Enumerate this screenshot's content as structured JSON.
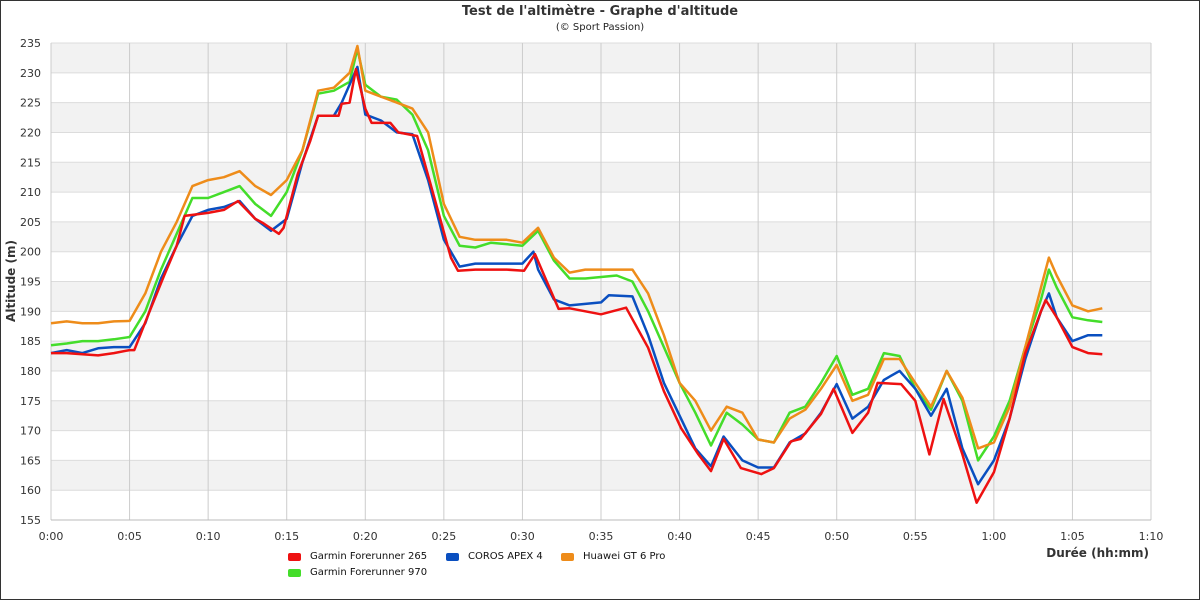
{
  "chart_data": {
    "type": "line",
    "title": "Test de l'altimètre - Graphe d'altitude",
    "subtitle": "(© Sport Passion)",
    "xlabel": "Durée (hh:mm)",
    "ylabel": "Altitude (m)",
    "xlim_minutes": [
      0,
      70
    ],
    "ylim": [
      155,
      235
    ],
    "yticks": [
      155,
      160,
      165,
      170,
      175,
      180,
      185,
      190,
      195,
      200,
      205,
      210,
      215,
      220,
      225,
      230,
      235
    ],
    "xticks": [
      "0:00",
      "0:05",
      "0:10",
      "0:15",
      "0:20",
      "0:25",
      "0:30",
      "0:35",
      "0:40",
      "0:45",
      "0:50",
      "0:55",
      "1:00",
      "1:05",
      "1:10"
    ],
    "grid": true,
    "legend_position": "bottom",
    "series": [
      {
        "name": "Garmin Forerunner 265",
        "color": "#ee1111",
        "points": [
          [
            0,
            183
          ],
          [
            1,
            183
          ],
          [
            2,
            182.8
          ],
          [
            3,
            182.6
          ],
          [
            4,
            183
          ],
          [
            5,
            183.5
          ],
          [
            5.3,
            183.5
          ],
          [
            6.2,
            189.5
          ],
          [
            7.2,
            196
          ],
          [
            8,
            201
          ],
          [
            8.5,
            206
          ],
          [
            10,
            206.5
          ],
          [
            11,
            207
          ],
          [
            11.9,
            208.5
          ],
          [
            13,
            205.5
          ],
          [
            13.5,
            204.8
          ],
          [
            14.5,
            203
          ],
          [
            14.8,
            204
          ],
          [
            15.7,
            213
          ],
          [
            16.5,
            218.6
          ],
          [
            17,
            222.8
          ],
          [
            18.3,
            222.8
          ],
          [
            18.5,
            224.8
          ],
          [
            19,
            225
          ],
          [
            19.4,
            230.6
          ],
          [
            20,
            224
          ],
          [
            20.4,
            221.6
          ],
          [
            21.6,
            221.6
          ],
          [
            22.1,
            220
          ],
          [
            23.3,
            219.4
          ],
          [
            24.4,
            209
          ],
          [
            25.45,
            199
          ],
          [
            25.9,
            196.8
          ],
          [
            27,
            197
          ],
          [
            29,
            197
          ],
          [
            30.1,
            196.8
          ],
          [
            30.8,
            199.6
          ],
          [
            32.3,
            190.4
          ],
          [
            33,
            190.5
          ],
          [
            35,
            189.5
          ],
          [
            36.6,
            190.6
          ],
          [
            38,
            183.9
          ],
          [
            39,
            176.6
          ],
          [
            40.1,
            170.4
          ],
          [
            41.2,
            166
          ],
          [
            42,
            163.2
          ],
          [
            42.8,
            168.6
          ],
          [
            43.9,
            163.7
          ],
          [
            45.2,
            162.7
          ],
          [
            46,
            163.7
          ],
          [
            47.1,
            168.2
          ],
          [
            47.7,
            168.6
          ],
          [
            49,
            172.8
          ],
          [
            49.8,
            177
          ],
          [
            51,
            169.6
          ],
          [
            52,
            173
          ],
          [
            52.6,
            178
          ],
          [
            54.1,
            177.8
          ],
          [
            55,
            175
          ],
          [
            55.9,
            166
          ],
          [
            56.8,
            175.3
          ],
          [
            58,
            166
          ],
          [
            58.9,
            157.9
          ],
          [
            60,
            163
          ],
          [
            61,
            172
          ],
          [
            62,
            183
          ],
          [
            63,
            190
          ],
          [
            63.3,
            191.9
          ],
          [
            64,
            189
          ],
          [
            65,
            184
          ],
          [
            66,
            183
          ],
          [
            66.9,
            182.8
          ]
        ]
      },
      {
        "name": "COROS APEX 4",
        "color": "#0a4fc0",
        "points": [
          [
            0,
            183
          ],
          [
            1,
            183.5
          ],
          [
            2,
            183
          ],
          [
            3,
            183.8
          ],
          [
            4,
            184
          ],
          [
            5,
            184
          ],
          [
            6,
            188
          ],
          [
            7,
            195.5
          ],
          [
            8,
            201
          ],
          [
            9,
            206
          ],
          [
            10,
            207
          ],
          [
            11,
            207.5
          ],
          [
            12,
            208.5
          ],
          [
            13,
            205.5
          ],
          [
            14,
            203.5
          ],
          [
            15,
            205.5
          ],
          [
            16,
            215
          ],
          [
            17,
            222.8
          ],
          [
            18,
            222.8
          ],
          [
            18.5,
            225
          ],
          [
            19.5,
            231
          ],
          [
            20,
            223
          ],
          [
            21,
            222
          ],
          [
            22,
            220
          ],
          [
            23,
            219.7
          ],
          [
            24,
            212
          ],
          [
            25,
            202
          ],
          [
            26,
            197.5
          ],
          [
            27,
            198
          ],
          [
            30,
            198
          ],
          [
            30.7,
            200
          ],
          [
            31,
            197
          ],
          [
            32,
            192
          ],
          [
            33,
            191
          ],
          [
            35,
            191.5
          ],
          [
            35.5,
            192.7
          ],
          [
            37,
            192.5
          ],
          [
            38,
            186
          ],
          [
            39,
            178
          ],
          [
            40,
            172.5
          ],
          [
            41,
            167
          ],
          [
            42,
            164
          ],
          [
            42.8,
            169
          ],
          [
            44,
            165
          ],
          [
            45,
            163.8
          ],
          [
            46,
            163.8
          ],
          [
            47,
            168
          ],
          [
            48,
            169.5
          ],
          [
            49,
            173
          ],
          [
            50,
            177.8
          ],
          [
            51,
            172
          ],
          [
            52,
            174
          ],
          [
            53,
            178.5
          ],
          [
            54,
            180
          ],
          [
            55,
            177
          ],
          [
            56,
            172.5
          ],
          [
            57,
            177
          ],
          [
            58,
            167
          ],
          [
            59,
            161
          ],
          [
            60,
            165
          ],
          [
            61,
            172
          ],
          [
            62,
            182
          ],
          [
            63,
            190
          ],
          [
            63.5,
            193
          ],
          [
            64,
            189
          ],
          [
            65,
            185
          ],
          [
            66,
            186
          ],
          [
            66.9,
            186
          ]
        ]
      },
      {
        "name": "Huawei GT 6 Pro",
        "color": "#ee8c1a",
        "points": [
          [
            0,
            188
          ],
          [
            1,
            188.3
          ],
          [
            2,
            188
          ],
          [
            3,
            188
          ],
          [
            4,
            188.3
          ],
          [
            5,
            188.4
          ],
          [
            6,
            193
          ],
          [
            7,
            200
          ],
          [
            8,
            205
          ],
          [
            9,
            211
          ],
          [
            10,
            212
          ],
          [
            11,
            212.5
          ],
          [
            12,
            213.5
          ],
          [
            13,
            211
          ],
          [
            14,
            209.5
          ],
          [
            15,
            212
          ],
          [
            16,
            217
          ],
          [
            17,
            227
          ],
          [
            18,
            227.5
          ],
          [
            19,
            230
          ],
          [
            19.5,
            234.5
          ],
          [
            20,
            227
          ],
          [
            21,
            226
          ],
          [
            22,
            225
          ],
          [
            23,
            224
          ],
          [
            24,
            220
          ],
          [
            25,
            208
          ],
          [
            26,
            202.5
          ],
          [
            27,
            202
          ],
          [
            29,
            202
          ],
          [
            30,
            201.5
          ],
          [
            31,
            204
          ],
          [
            32,
            199
          ],
          [
            33,
            196.5
          ],
          [
            34,
            197
          ],
          [
            37,
            197
          ],
          [
            38,
            193
          ],
          [
            39,
            186
          ],
          [
            40,
            178
          ],
          [
            41,
            175
          ],
          [
            42,
            170
          ],
          [
            43,
            174
          ],
          [
            44,
            173
          ],
          [
            45,
            168.5
          ],
          [
            46,
            168
          ],
          [
            47,
            172
          ],
          [
            48,
            173.5
          ],
          [
            49,
            177
          ],
          [
            50,
            181
          ],
          [
            51,
            175
          ],
          [
            52,
            176
          ],
          [
            53,
            182
          ],
          [
            54,
            182
          ],
          [
            55,
            178
          ],
          [
            56,
            174
          ],
          [
            57,
            180
          ],
          [
            58,
            175.5
          ],
          [
            59,
            167
          ],
          [
            60,
            168
          ],
          [
            61,
            174
          ],
          [
            62,
            184
          ],
          [
            63,
            194
          ],
          [
            63.5,
            199
          ],
          [
            64,
            196
          ],
          [
            65,
            191
          ],
          [
            66,
            190
          ],
          [
            66.9,
            190.5
          ]
        ]
      },
      {
        "name": "Garmin Forerunner 970",
        "color": "#44dd2a",
        "points": [
          [
            0,
            184.3
          ],
          [
            1,
            184.6
          ],
          [
            2,
            185
          ],
          [
            3,
            185
          ],
          [
            4,
            185.3
          ],
          [
            5,
            185.7
          ],
          [
            6,
            190
          ],
          [
            7,
            197
          ],
          [
            8,
            203
          ],
          [
            9,
            209
          ],
          [
            10,
            209
          ],
          [
            11,
            210
          ],
          [
            12,
            211
          ],
          [
            13,
            208
          ],
          [
            14,
            206
          ],
          [
            15,
            210
          ],
          [
            16,
            217
          ],
          [
            17,
            226.5
          ],
          [
            18,
            227
          ],
          [
            19,
            228.5
          ],
          [
            19.5,
            234
          ],
          [
            20,
            228
          ],
          [
            21,
            226
          ],
          [
            22,
            225.5
          ],
          [
            23,
            223
          ],
          [
            24,
            217
          ],
          [
            25,
            206
          ],
          [
            26,
            201
          ],
          [
            27,
            200.7
          ],
          [
            28,
            201.5
          ],
          [
            30,
            201
          ],
          [
            31,
            203.5
          ],
          [
            32,
            198.5
          ],
          [
            33,
            195.5
          ],
          [
            34,
            195.5
          ],
          [
            36,
            196
          ],
          [
            37,
            195
          ],
          [
            38,
            190
          ],
          [
            39,
            184
          ],
          [
            40,
            178
          ],
          [
            41,
            173
          ],
          [
            42,
            167.5
          ],
          [
            43,
            173
          ],
          [
            44,
            171
          ],
          [
            45,
            168.5
          ],
          [
            46,
            168
          ],
          [
            47,
            173
          ],
          [
            48,
            174
          ],
          [
            49,
            178
          ],
          [
            50,
            182.5
          ],
          [
            51,
            176
          ],
          [
            52,
            177
          ],
          [
            53,
            183
          ],
          [
            54,
            182.5
          ],
          [
            55,
            177
          ],
          [
            56,
            173.5
          ],
          [
            57,
            180
          ],
          [
            58,
            175
          ],
          [
            59,
            165
          ],
          [
            60,
            169
          ],
          [
            61,
            175
          ],
          [
            62,
            184
          ],
          [
            63,
            192
          ],
          [
            63.5,
            197
          ],
          [
            64,
            194
          ],
          [
            65,
            189
          ],
          [
            66,
            188.5
          ],
          [
            66.9,
            188.2
          ]
        ]
      }
    ]
  }
}
